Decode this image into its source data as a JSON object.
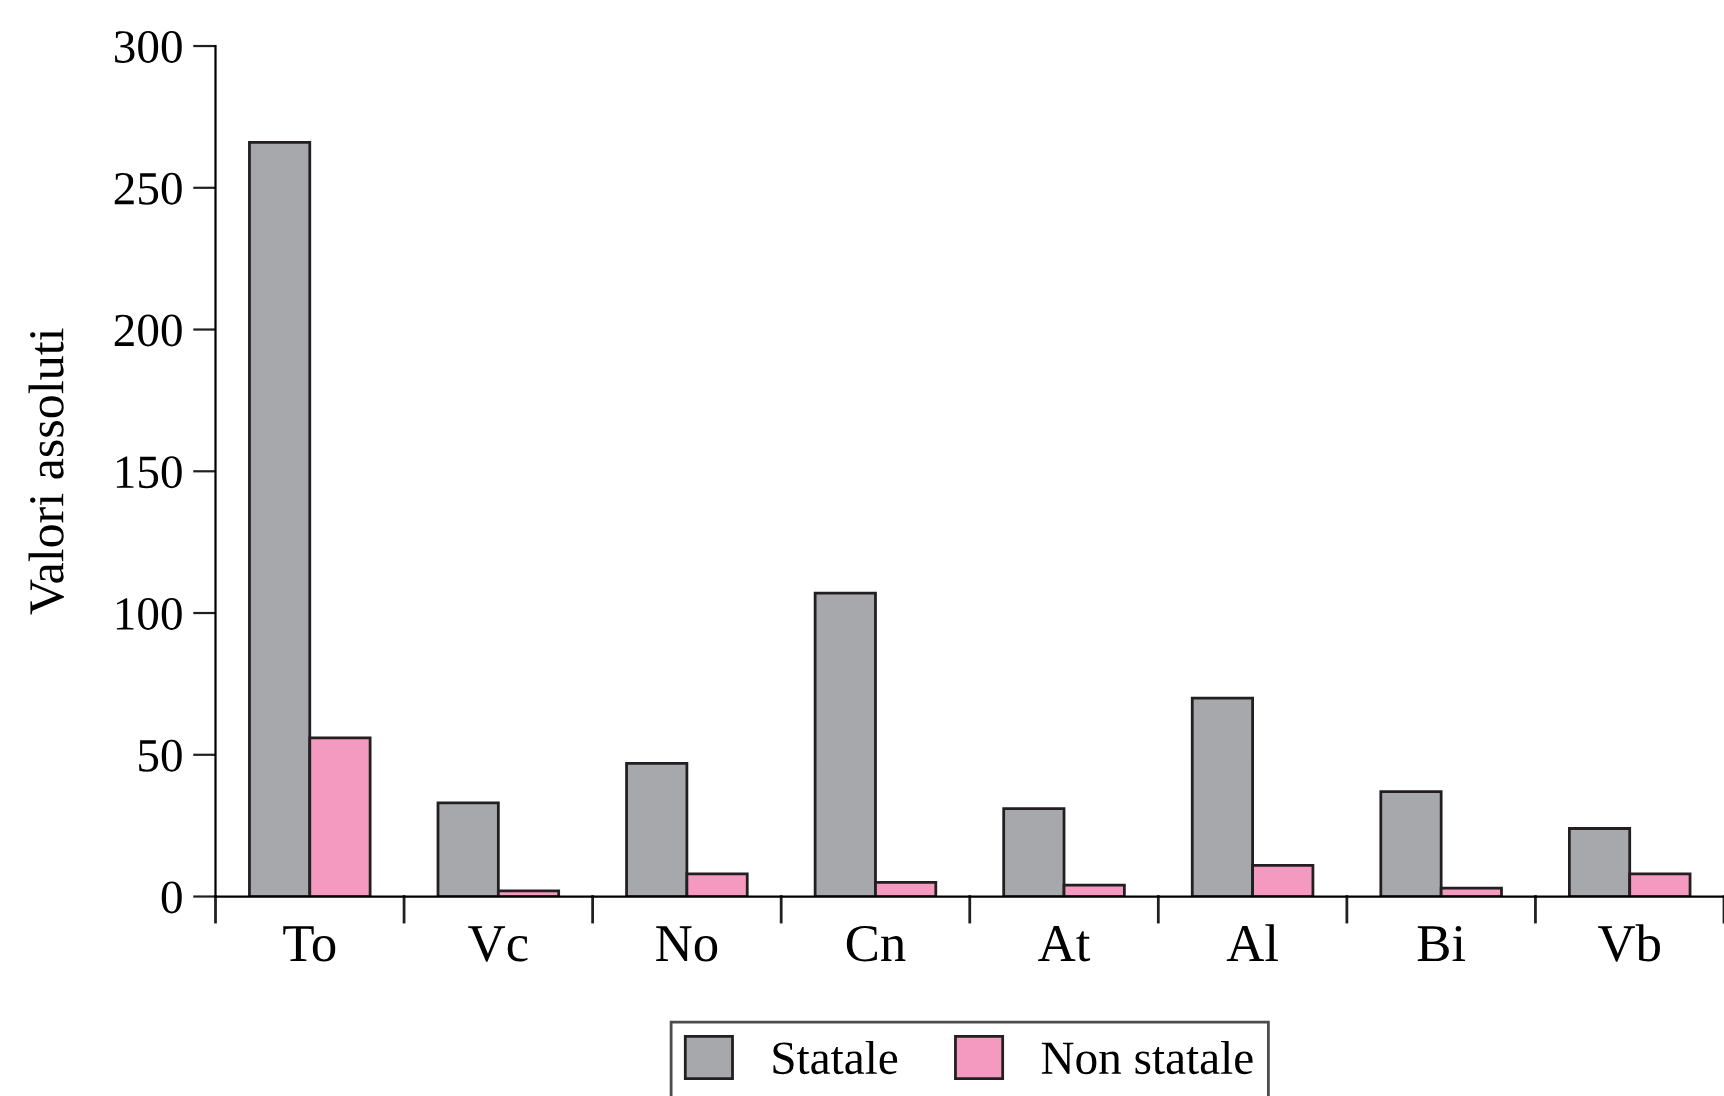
{
  "chart_data": {
    "type": "bar",
    "ylabel": "Valori assoluti",
    "categories": [
      "To",
      "Vc",
      "No",
      "Cn",
      "At",
      "Al",
      "Bi",
      "Vb"
    ],
    "series": [
      {
        "name": "Statale",
        "color": "#a7a8ab",
        "values": [
          266,
          33,
          47,
          107,
          31,
          70,
          37,
          24
        ]
      },
      {
        "name": "Non statale",
        "color": "#f49ac1",
        "values": [
          56,
          2,
          8,
          5,
          4,
          11,
          3,
          8
        ]
      }
    ],
    "ylim": [
      0,
      300
    ],
    "yticks": [
      0,
      50,
      100,
      150,
      200,
      250,
      300
    ],
    "grid": false,
    "legend": "bottom"
  }
}
